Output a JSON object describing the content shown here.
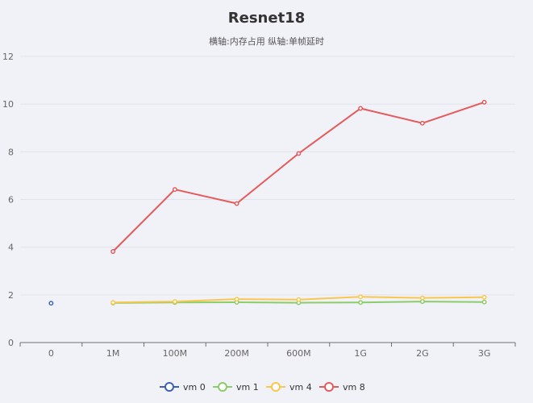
{
  "chart_data": {
    "type": "line",
    "title": "Resnet18",
    "subtitle": "横轴:内存占用   纵轴:单帧延时",
    "categories": [
      "0",
      "1M",
      "100M",
      "200M",
      "600M",
      "1G",
      "2G",
      "3G"
    ],
    "ylim": [
      0,
      12
    ],
    "yticks": [
      0,
      2,
      4,
      6,
      8,
      10,
      12
    ],
    "grid": true,
    "legend_position": "bottom",
    "series": [
      {
        "name": "vm 0",
        "color": "#3d5fb8",
        "values": [
          1.65,
          null,
          null,
          null,
          null,
          null,
          null,
          null
        ]
      },
      {
        "name": "vm 1",
        "color": "#8ccc6a",
        "values": [
          null,
          1.66,
          1.68,
          1.69,
          1.67,
          1.68,
          1.72,
          1.7
        ]
      },
      {
        "name": "vm 4",
        "color": "#f8c84e",
        "values": [
          null,
          1.68,
          1.72,
          1.82,
          1.8,
          1.92,
          1.87,
          1.9
        ]
      },
      {
        "name": "vm 8",
        "color": "#e55a5a",
        "values": [
          null,
          3.82,
          6.42,
          5.83,
          7.93,
          9.82,
          9.2,
          10.08
        ]
      }
    ]
  }
}
